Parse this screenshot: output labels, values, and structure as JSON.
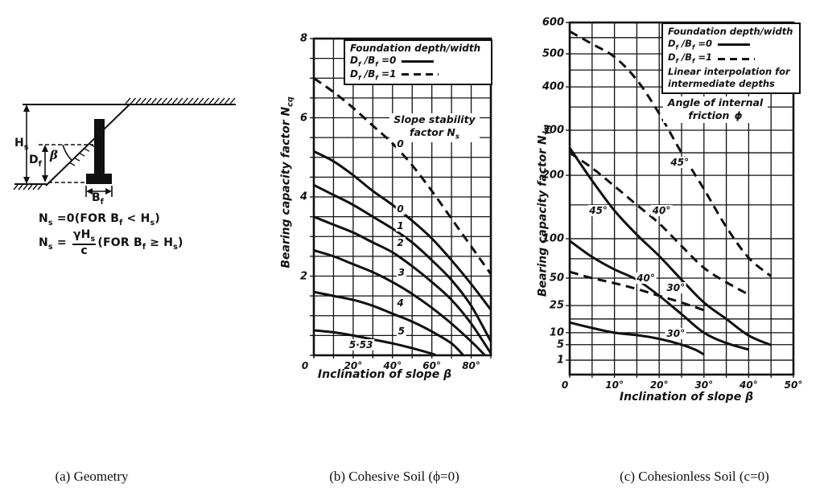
{
  "captions": {
    "a": "(a) Geometry",
    "b": "(b) Cohesive Soil (ϕ=0)",
    "c": "(c) Cohesionless Soil (c=0)"
  },
  "geometry": {
    "labels_html": {
      "hs": "H<sub>s</sub>",
      "df": "D<sub>f</sub>",
      "beta": "<i>β</i>",
      "bf": "B<sub>f</sub>"
    },
    "equations_html": [
      "N<sub>s</sub> =0(FOR  B<sub>f</sub> &lt; H<sub>s</sub>)",
      "N<sub>s</sub> = <span class=\"frac\"><span class=\"num\">γH<sub>s</sub></span><span class=\"den\">c</span></span>(FOR  B<sub>f</sub> ≥  H<sub>s</sub>)"
    ]
  },
  "chart_data": [
    {
      "id": "cohesive-soil-chart",
      "type": "line",
      "title": "(b) Cohesive Soil (ϕ=0)",
      "xlabel_html": "Inclination of slope <i>β</i>",
      "ylabel_html": "Bearing capacity factor N<sub>cq</sub>",
      "xlim": [
        0,
        90
      ],
      "ylim": [
        0,
        8
      ],
      "x_grid_step_deg": 10,
      "y_grid_step": 0.5,
      "grid": true,
      "x_ticks": [
        {
          "v": 0,
          "label": "0"
        },
        {
          "v": 20,
          "label": "20°"
        },
        {
          "v": 40,
          "label": "40°"
        },
        {
          "v": 60,
          "label": "60°"
        },
        {
          "v": 80,
          "label": "80°"
        }
      ],
      "y_ticks": [
        {
          "v": 8,
          "label": "8"
        },
        {
          "v": 6,
          "label": "6"
        },
        {
          "v": 4,
          "label": "4"
        },
        {
          "v": 2,
          "label": "2"
        }
      ],
      "legend": {
        "position": "top-right",
        "title": "Foundation depth/width",
        "entries": [
          {
            "label_html": "D<sub>f</sub> /B<sub>f</sub> =0",
            "style": "solid"
          },
          {
            "label_html": "D<sub>f</sub> /B<sub>f</sub> =1",
            "style": "dashed"
          }
        ]
      },
      "inner_annotation_html": "Slope stability<br>factor N<sub>s</sub>",
      "series": [
        {
          "name": "Ns=0, Df/Bf=1",
          "style": "dashed",
          "points": [
            [
              0,
              7.0
            ],
            [
              10,
              6.65
            ],
            [
              20,
              6.25
            ],
            [
              30,
              5.8
            ],
            [
              40,
              5.35
            ],
            [
              50,
              4.8
            ],
            [
              60,
              4.15
            ],
            [
              70,
              3.45
            ],
            [
              80,
              2.75
            ],
            [
              90,
              2.05
            ]
          ]
        },
        {
          "name": "Ns=0, Df/Bf=0",
          "style": "solid",
          "points": [
            [
              0,
              5.15
            ],
            [
              10,
              4.9
            ],
            [
              20,
              4.55
            ],
            [
              30,
              4.15
            ],
            [
              40,
              3.8
            ],
            [
              50,
              3.4
            ],
            [
              60,
              2.95
            ],
            [
              70,
              2.4
            ],
            [
              80,
              1.8
            ],
            [
              90,
              1.15
            ]
          ]
        },
        {
          "name": "Ns=1, Df/Bf=0",
          "style": "solid",
          "points": [
            [
              0,
              4.3
            ],
            [
              10,
              4.05
            ],
            [
              20,
              3.8
            ],
            [
              30,
              3.5
            ],
            [
              40,
              3.2
            ],
            [
              50,
              2.85
            ],
            [
              60,
              2.4
            ],
            [
              70,
              1.9
            ],
            [
              80,
              1.25
            ],
            [
              90,
              0.35
            ]
          ]
        },
        {
          "name": "Ns=2, Df/Bf=0",
          "style": "solid",
          "points": [
            [
              0,
              3.5
            ],
            [
              10,
              3.3
            ],
            [
              20,
              3.1
            ],
            [
              30,
              2.85
            ],
            [
              40,
              2.6
            ],
            [
              50,
              2.25
            ],
            [
              60,
              1.85
            ],
            [
              70,
              1.4
            ],
            [
              80,
              0.8
            ],
            [
              90,
              0.05
            ]
          ]
        },
        {
          "name": "Ns=3, Df/Bf=0",
          "style": "solid",
          "points": [
            [
              0,
              2.65
            ],
            [
              10,
              2.5
            ],
            [
              20,
              2.3
            ],
            [
              30,
              2.1
            ],
            [
              40,
              1.85
            ],
            [
              50,
              1.55
            ],
            [
              60,
              1.2
            ],
            [
              70,
              0.8
            ],
            [
              80,
              0.35
            ],
            [
              87,
              0
            ]
          ]
        },
        {
          "name": "Ns=4, Df/Bf=0",
          "style": "solid",
          "points": [
            [
              0,
              1.6
            ],
            [
              10,
              1.5
            ],
            [
              20,
              1.4
            ],
            [
              30,
              1.25
            ],
            [
              40,
              1.05
            ],
            [
              50,
              0.85
            ],
            [
              60,
              0.6
            ],
            [
              70,
              0.3
            ],
            [
              76,
              0
            ]
          ]
        },
        {
          "name": "Ns=5, Df/Bf=0",
          "style": "solid",
          "points": [
            [
              0,
              0.63
            ],
            [
              10,
              0.58
            ],
            [
              20,
              0.5
            ],
            [
              30,
              0.4
            ],
            [
              40,
              0.3
            ],
            [
              50,
              0.18
            ],
            [
              60,
              0.04
            ],
            [
              62,
              0
            ]
          ]
        }
      ],
      "curve_labels": [
        {
          "text": "0",
          "x": 44,
          "y": 5.35
        },
        {
          "text": "0",
          "x": 44,
          "y": 3.7
        },
        {
          "text": "1",
          "x": 44,
          "y": 3.27
        },
        {
          "text": "2",
          "x": 44,
          "y": 2.84
        },
        {
          "text": "3",
          "x": 44.5,
          "y": 2.1
        },
        {
          "text": "4",
          "x": 44,
          "y": 1.31
        },
        {
          "text": "5",
          "x": 44.5,
          "y": 0.6
        },
        {
          "text": "5·53",
          "x": 24,
          "y": 0.27
        }
      ]
    },
    {
      "id": "cohesionless-soil-chart",
      "type": "line",
      "title": "(c) Cohesionless Soil (c=0)",
      "xlabel_html": "Inclination of slope <i>β</i>",
      "ylabel_html": "Bearing capacity factor N<sub>γq</sub>",
      "xlim": [
        0,
        50
      ],
      "ylim": [
        1,
        600
      ],
      "y_scale": "custom-compressed",
      "x_grid_step_deg": 5,
      "grid": true,
      "x_ticks": [
        {
          "v": 0,
          "label": "0"
        },
        {
          "v": 10,
          "label": "10°"
        },
        {
          "v": 20,
          "label": "20°"
        },
        {
          "v": 30,
          "label": "30°"
        },
        {
          "v": 40,
          "label": "40°"
        },
        {
          "v": 50,
          "label": "50°"
        }
      ],
      "y_ticks": [
        600,
        500,
        400,
        300,
        200,
        100,
        50,
        25,
        10,
        5,
        1
      ],
      "y_minor_gridlines": [
        550,
        450,
        350,
        250,
        150,
        75,
        15
      ],
      "y_axis_anchors": [
        [
          600,
          0
        ],
        [
          550,
          0.043
        ],
        [
          500,
          0.089
        ],
        [
          450,
          0.135
        ],
        [
          400,
          0.183
        ],
        [
          350,
          0.24
        ],
        [
          300,
          0.306
        ],
        [
          250,
          0.37
        ],
        [
          200,
          0.434
        ],
        [
          150,
          0.518
        ],
        [
          100,
          0.614
        ],
        [
          75,
          0.671
        ],
        [
          50,
          0.726
        ],
        [
          25,
          0.804
        ],
        [
          15,
          0.842
        ],
        [
          10,
          0.881
        ],
        [
          5,
          0.915
        ],
        [
          1,
          0.959
        ]
      ],
      "legend": {
        "position": "top-right",
        "title": "Foundation depth/width",
        "entries": [
          {
            "label_html": "D<sub>f</sub> /B<sub>f</sub> =0",
            "style": "solid"
          },
          {
            "label_html": "D<sub>f</sub> /B<sub>f</sub> =1",
            "style": "dashed"
          }
        ],
        "note_html": "Linear interpolation for<br>intermediate depths"
      },
      "inner_annotation_html": "Angle of internal<br>friction ϕ",
      "series": [
        {
          "name": "phi=45, Df/Bf=1",
          "style": "dashed",
          "points": [
            [
              0,
              570
            ],
            [
              5,
              530
            ],
            [
              10,
              490
            ],
            [
              15,
              420
            ],
            [
              20,
              335
            ],
            [
              25,
              250
            ],
            [
              30,
              175
            ],
            [
              35,
              115
            ],
            [
              40,
              76
            ],
            [
              45,
              52
            ]
          ]
        },
        {
          "name": "phi=40, Df/Bf=1",
          "style": "dashed",
          "points": [
            [
              0,
              250
            ],
            [
              5,
              215
            ],
            [
              10,
              180
            ],
            [
              15,
              150
            ],
            [
              20,
              120
            ],
            [
              25,
              90
            ],
            [
              30,
              62
            ],
            [
              35,
              45
            ],
            [
              40,
              33
            ]
          ]
        },
        {
          "name": "phi=30, Df/Bf=1",
          "style": "dashed",
          "points": [
            [
              0,
              57
            ],
            [
              5,
              50
            ],
            [
              10,
              44
            ],
            [
              15,
              38
            ],
            [
              20,
              32
            ],
            [
              25,
              27
            ],
            [
              30,
              21
            ]
          ]
        },
        {
          "name": "phi=45, Df/Bf=0",
          "style": "solid",
          "points": [
            [
              0,
              260
            ],
            [
              5,
              190
            ],
            [
              10,
              140
            ],
            [
              15,
              105
            ],
            [
              20,
              78
            ],
            [
              25,
              48
            ],
            [
              30,
              27
            ],
            [
              35,
              15
            ],
            [
              40,
              8.5
            ],
            [
              45,
              4.8
            ]
          ]
        },
        {
          "name": "phi=40, Df/Bf=0",
          "style": "solid",
          "points": [
            [
              0,
              97
            ],
            [
              5,
              77
            ],
            [
              10,
              60
            ],
            [
              15,
              48
            ],
            [
              20,
              32
            ],
            [
              25,
              18
            ],
            [
              30,
              10
            ],
            [
              35,
              5.5
            ],
            [
              40,
              3
            ]
          ]
        },
        {
          "name": "phi=30, Df/Bf=0",
          "style": "solid",
          "points": [
            [
              0,
              13.5
            ],
            [
              5,
              11.5
            ],
            [
              10,
              10
            ],
            [
              15,
              8.7
            ],
            [
              20,
              7
            ],
            [
              25,
              5
            ],
            [
              28,
              3
            ],
            [
              30,
              1.8
            ]
          ]
        }
      ],
      "curve_labels": [
        {
          "text": "45°",
          "x": 6.4,
          "y": 140
        },
        {
          "text": "40°",
          "x": 20.5,
          "y": 140
        },
        {
          "text": "45°",
          "x": 24.6,
          "y": 228
        },
        {
          "text": "40°",
          "x": 17,
          "y": 50
        },
        {
          "text": "30°",
          "x": 23.7,
          "y": 39
        },
        {
          "text": "30°",
          "x": 23.7,
          "y": 9.3
        }
      ]
    }
  ]
}
